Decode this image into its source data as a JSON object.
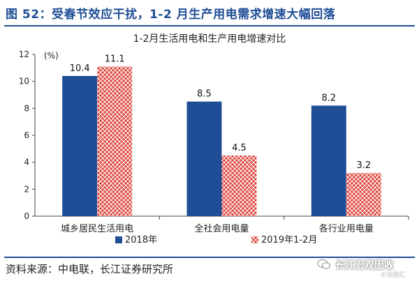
{
  "figure_title": "图 52：受春节效应干扰，1-2 月生产用电需求增速大幅回落",
  "source": "资料来源：中电联，长江证券研究所",
  "watermark": "长江宏观固收",
  "watermark_small": "©格隆汇",
  "colors": {
    "series_2018": "#1f4e96",
    "series_2019": "#e0443a",
    "title_blue": "#1f4e96"
  },
  "chart_data": {
    "type": "bar",
    "title": "1-2月生活用电和生产用电增速对比",
    "unit_label": "(%)",
    "categories": [
      "城乡居民生活用电",
      "全社会用电量",
      "各行业用电量"
    ],
    "series": [
      {
        "name": "2018年",
        "values": [
          10.4,
          8.5,
          8.2
        ]
      },
      {
        "name": "2019年1-2月",
        "values": [
          11.1,
          4.5,
          3.2
        ]
      }
    ],
    "value_labels": [
      [
        "10.4",
        "8.5",
        "8.2"
      ],
      [
        "11.1",
        "4.5",
        "3.2"
      ]
    ],
    "ylim": [
      0,
      12
    ],
    "yticks": [
      "0",
      "2",
      "4",
      "6",
      "8",
      "10",
      "12"
    ],
    "grid": false,
    "legend_position": "bottom"
  }
}
